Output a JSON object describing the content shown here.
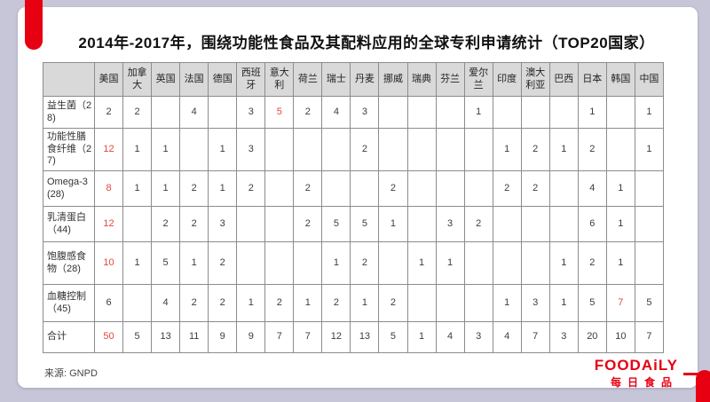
{
  "title": "2014年-2017年，围绕功能性食品及其配料应用的全球专利申请统计（TOP20国家）",
  "source": "来源: GNPD",
  "logo": {
    "wordmark": "FOODAiLY",
    "cn": "每日食品"
  },
  "colors": {
    "accent_red": "#e60012",
    "highlight_value_red": "#e6463c",
    "header_bg": "#d9d9d9",
    "table_border": "#8c8c8c",
    "page_background": "#c6c6d8",
    "card_background": "#ffffff"
  },
  "chart_data": {
    "type": "table",
    "corner_label": "",
    "columns": [
      "美国",
      "加拿大",
      "英国",
      "法国",
      "德国",
      "西班牙",
      "意大利",
      "荷兰",
      "瑞士",
      "丹麦",
      "挪威",
      "瑞典",
      "芬兰",
      "爱尔兰",
      "印度",
      "澳大利亚",
      "巴西",
      "日本",
      "韩国",
      "中国"
    ],
    "rows": [
      {
        "label": "益生菌（28)",
        "values": [
          2,
          2,
          "",
          4,
          "",
          3,
          5,
          2,
          4,
          3,
          "",
          "",
          "",
          1,
          "",
          "",
          "",
          1,
          "",
          1
        ],
        "red_indices": [
          6
        ]
      },
      {
        "label": "功能性膳食纤维（27)",
        "values": [
          12,
          1,
          1,
          "",
          1,
          3,
          "",
          "",
          "",
          2,
          "",
          "",
          "",
          "",
          1,
          2,
          1,
          2,
          "",
          1
        ],
        "red_indices": [
          0
        ]
      },
      {
        "label": "Omega-3 (28)",
        "values": [
          8,
          1,
          1,
          2,
          1,
          2,
          "",
          2,
          "",
          "",
          2,
          "",
          "",
          "",
          2,
          2,
          "",
          4,
          1,
          ""
        ],
        "red_indices": [
          0
        ]
      },
      {
        "label": "乳清蛋白（44)",
        "values": [
          12,
          "",
          2,
          2,
          3,
          "",
          "",
          2,
          5,
          5,
          1,
          "",
          3,
          2,
          "",
          "",
          "",
          6,
          1,
          ""
        ],
        "red_indices": [
          0
        ]
      },
      {
        "label": "饱腹感食物（28)",
        "values": [
          10,
          1,
          5,
          1,
          2,
          "",
          "",
          "",
          1,
          2,
          "",
          1,
          1,
          "",
          "",
          "",
          1,
          2,
          1,
          ""
        ],
        "red_indices": [
          0
        ]
      },
      {
        "label": "血糖控制（45)",
        "values": [
          6,
          "",
          4,
          2,
          2,
          1,
          2,
          1,
          2,
          1,
          2,
          "",
          "",
          "",
          1,
          3,
          1,
          5,
          7,
          5
        ],
        "red_indices": [
          18
        ]
      },
      {
        "label": "合计",
        "values": [
          50,
          5,
          13,
          11,
          9,
          9,
          7,
          7,
          12,
          13,
          5,
          1,
          4,
          3,
          4,
          7,
          3,
          20,
          10,
          7
        ],
        "red_indices": [
          0
        ],
        "is_total": true
      }
    ]
  }
}
